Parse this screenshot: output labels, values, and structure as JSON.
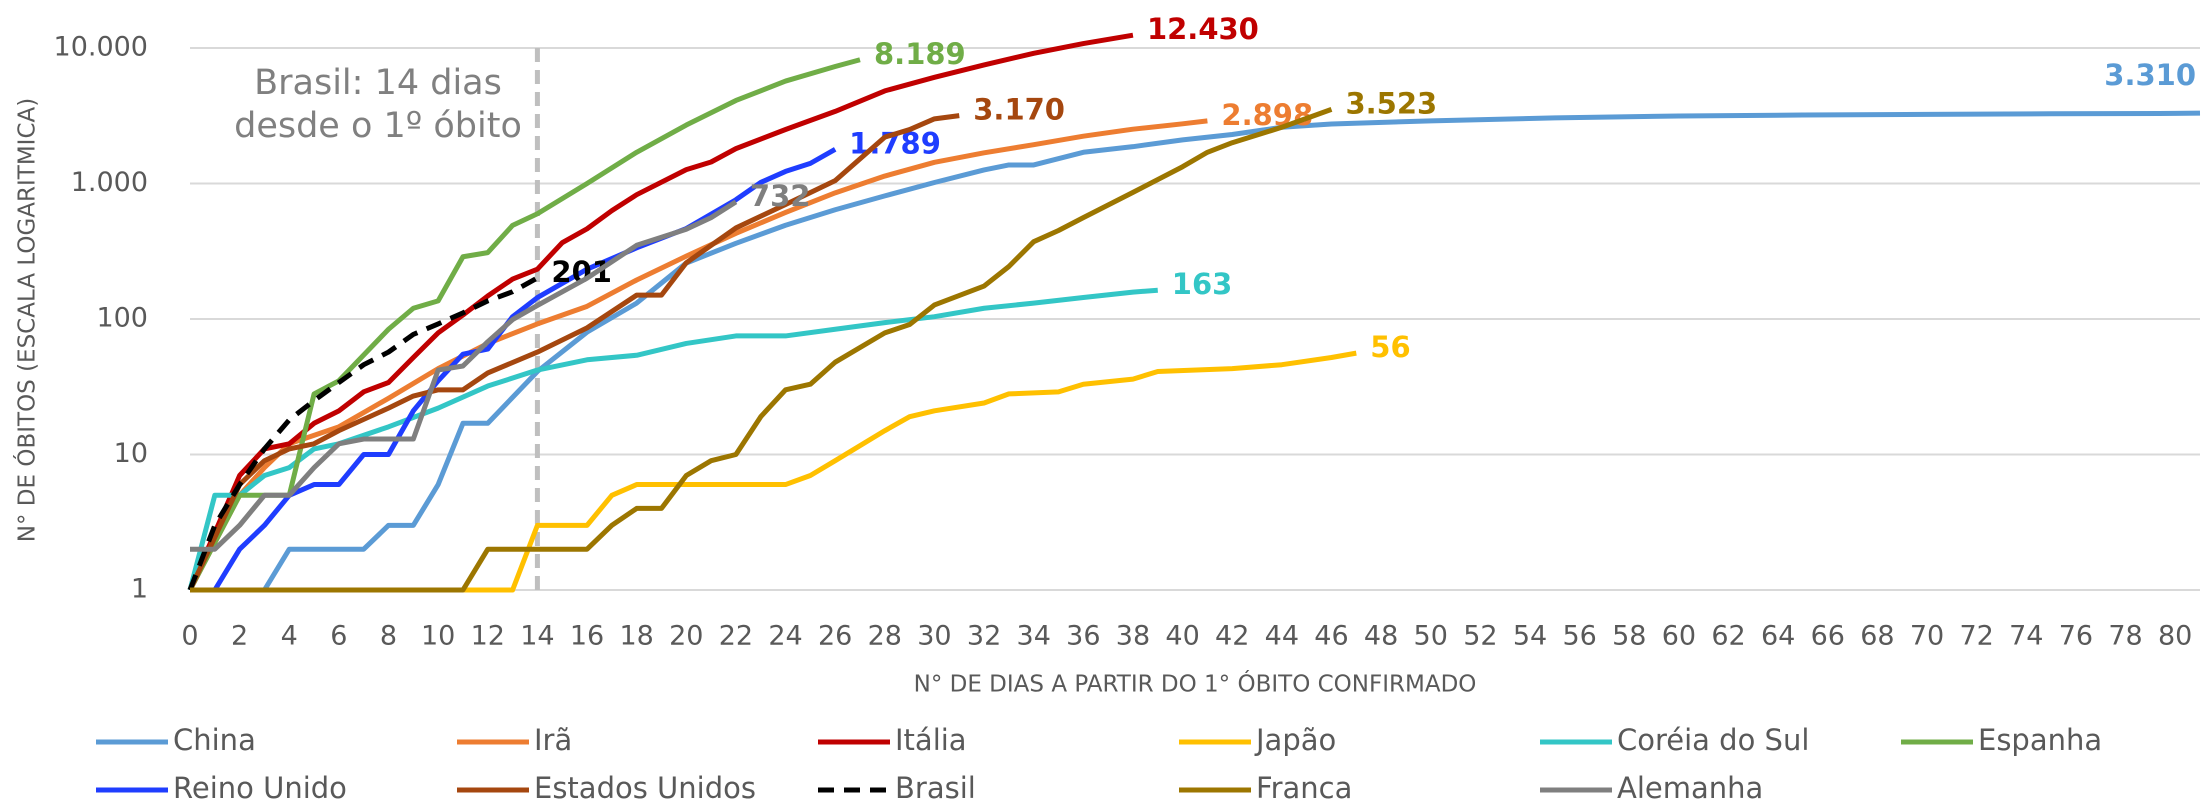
{
  "chart_data": {
    "type": "line",
    "y_label": "N° DE ÓBITOS (ESCALA LOGARITMICA)",
    "x_label": "N° DE DIAS A PARTIR DO 1° ÓBITO CONFIRMADO",
    "xlim": [
      0,
      81
    ],
    "xticks": [
      0,
      2,
      4,
      6,
      8,
      10,
      12,
      14,
      16,
      18,
      20,
      22,
      24,
      26,
      28,
      30,
      32,
      34,
      36,
      38,
      40,
      42,
      44,
      46,
      48,
      50,
      52,
      54,
      56,
      58,
      60,
      62,
      64,
      66,
      68,
      70,
      72,
      74,
      76,
      78,
      80
    ],
    "ylim": [
      1,
      10000
    ],
    "yticks": [
      1,
      10,
      100,
      {
        "value": 1000,
        "label": "1.000"
      },
      {
        "value": 10000,
        "label": "10.000"
      }
    ],
    "log_scale": true,
    "grid": true,
    "legend": "bottom",
    "annotation": {
      "lines": [
        "Brasil: 14 dias",
        "desde o 1º óbito"
      ],
      "x": 14
    },
    "series": [
      {
        "name": "China",
        "color": "#5b9bd5",
        "x": [
          3,
          4,
          7,
          8,
          9,
          10,
          11,
          12,
          14,
          16,
          18,
          20,
          22,
          24,
          26,
          28,
          30,
          32,
          33,
          34,
          36,
          38,
          40,
          42,
          44,
          46,
          50,
          55,
          60,
          65,
          70,
          75,
          80,
          81
        ],
        "values": [
          1,
          2,
          2,
          3,
          3,
          6,
          17,
          17,
          41,
          80,
          131,
          259,
          362,
          492,
          640,
          810,
          1017,
          1260,
          1370,
          1370,
          1700,
          1870,
          2100,
          2300,
          2600,
          2750,
          2900,
          3050,
          3150,
          3200,
          3240,
          3270,
          3290,
          3310
        ],
        "value_labels": [
          null,
          null,
          null,
          null,
          null,
          null,
          null,
          null,
          null,
          null,
          null,
          null,
          null,
          null,
          null,
          null,
          null,
          null,
          null,
          null,
          null,
          null,
          null,
          null,
          null,
          null,
          null,
          null,
          null,
          null,
          null,
          null,
          null,
          "3.310"
        ]
      },
      {
        "name": "Irã",
        "color": "#ed7d31",
        "x": [
          0,
          2,
          3,
          4,
          6,
          8,
          10,
          12,
          14,
          16,
          18,
          20,
          22,
          24,
          26,
          28,
          30,
          32,
          34,
          36,
          38,
          40,
          41
        ],
        "values": [
          1,
          5,
          8,
          12,
          16,
          26,
          43,
          66,
          92,
          124,
          194,
          291,
          429,
          611,
          853,
          1135,
          1433,
          1685,
          1934,
          2234,
          2517,
          2757,
          2898
        ],
        "value_labels": [
          null,
          null,
          null,
          null,
          null,
          null,
          null,
          null,
          null,
          null,
          null,
          null,
          null,
          null,
          null,
          null,
          null,
          null,
          null,
          null,
          null,
          null,
          "2.898"
        ]
      },
      {
        "name": "Itália",
        "color": "#c00000",
        "x": [
          0,
          2,
          3,
          4,
          5,
          6,
          7,
          8,
          9,
          10,
          11,
          12,
          13,
          14,
          15,
          16,
          17,
          18,
          20,
          21,
          22,
          24,
          26,
          28,
          30,
          32,
          34,
          36,
          38
        ],
        "values": [
          1,
          7,
          11,
          12,
          17,
          21,
          29,
          34,
          52,
          79,
          107,
          148,
          197,
          233,
          366,
          463,
          631,
          827,
          1266,
          1441,
          1809,
          2503,
          3405,
          4825,
          6077,
          7503,
          9134,
          10779,
          12430
        ],
        "value_labels": [
          null,
          null,
          null,
          null,
          null,
          null,
          null,
          null,
          null,
          null,
          null,
          null,
          null,
          null,
          null,
          null,
          null,
          null,
          null,
          null,
          null,
          null,
          null,
          null,
          null,
          null,
          null,
          null,
          "12.430"
        ]
      },
      {
        "name": "Japão",
        "color": "#ffc000",
        "x": [
          0,
          13,
          14,
          16,
          17,
          18,
          24,
          25,
          26,
          28,
          29,
          30,
          32,
          33,
          35,
          36,
          38,
          39,
          42,
          44,
          46,
          47
        ],
        "values": [
          1,
          1,
          3,
          3,
          5,
          6,
          6,
          7,
          9,
          15,
          19,
          21,
          24,
          28,
          29,
          33,
          36,
          41,
          43,
          46,
          52,
          56
        ]
      },
      {
        "name": "Coréia do Sul",
        "color": "#33c6c6",
        "x": [
          0,
          1,
          2,
          3,
          4,
          5,
          6,
          8,
          10,
          12,
          14,
          16,
          18,
          20,
          22,
          24,
          26,
          28,
          30,
          32,
          34,
          36,
          38,
          39
        ],
        "values": [
          1,
          5,
          5,
          7,
          8,
          11,
          12,
          16,
          22,
          32,
          42,
          50,
          54,
          66,
          75,
          75,
          84,
          94,
          104,
          120,
          131,
          144,
          158,
          163
        ]
      },
      {
        "name": "Espanha",
        "color": "#70ad47",
        "x": [
          0,
          2,
          4,
          5,
          6,
          8,
          9,
          10,
          11,
          12,
          13,
          14,
          16,
          18,
          20,
          22,
          24,
          26,
          27
        ],
        "values": [
          1,
          5,
          5,
          28,
          35,
          84,
          120,
          136,
          288,
          309,
          491,
          598,
          1000,
          1700,
          2700,
          4100,
          5700,
          7300,
          8189
        ],
        "value_labels": [
          null,
          null,
          null,
          null,
          null,
          null,
          null,
          null,
          null,
          null,
          null,
          null,
          null,
          null,
          null,
          null,
          null,
          null,
          "8.189"
        ]
      },
      {
        "name": "Reino Unido",
        "color": "#1f3dff",
        "x": [
          0,
          1,
          2,
          3,
          4,
          5,
          6,
          7,
          8,
          9,
          10,
          11,
          12,
          13,
          14,
          16,
          18,
          20,
          22,
          23,
          24,
          25,
          26
        ],
        "values": [
          1,
          1,
          2,
          3,
          5,
          6,
          6,
          10,
          10,
          21,
          35,
          55,
          60,
          104,
          144,
          233,
          335,
          465,
          759,
          1019,
          1228,
          1408,
          1789
        ],
        "value_labels": [
          null,
          null,
          null,
          null,
          null,
          null,
          null,
          null,
          null,
          null,
          null,
          null,
          null,
          null,
          null,
          null,
          null,
          null,
          null,
          null,
          null,
          null,
          "1.789"
        ]
      },
      {
        "name": "Estados Unidos",
        "color": "#a5470f",
        "x": [
          0,
          2,
          3,
          4,
          5,
          6,
          8,
          9,
          10,
          11,
          12,
          14,
          16,
          18,
          19,
          20,
          22,
          24,
          26,
          28,
          29,
          30,
          31
        ],
        "values": [
          1,
          6,
          9,
          11,
          12,
          15,
          22,
          27,
          30,
          30,
          40,
          57,
          86,
          150,
          150,
          260,
          470,
          700,
          1050,
          2200,
          2500,
          3000,
          3170
        ],
        "value_labels": [
          null,
          null,
          null,
          null,
          null,
          null,
          null,
          null,
          null,
          null,
          null,
          null,
          null,
          null,
          null,
          null,
          null,
          null,
          null,
          null,
          null,
          null,
          "3.170"
        ]
      },
      {
        "name": "Brasil",
        "color": "#000000",
        "dashed": true,
        "x": [
          0,
          1,
          2,
          3,
          4,
          5,
          6,
          7,
          8,
          9,
          10,
          11,
          12,
          13,
          14
        ],
        "values": [
          1,
          3,
          6,
          11,
          18,
          25,
          34,
          46,
          57,
          77,
          92,
          111,
          136,
          159,
          201
        ]
      },
      {
        "name": "Franca",
        "color": "#9c7600",
        "x": [
          0,
          11,
          12,
          16,
          17,
          18,
          19,
          20,
          21,
          22,
          23,
          24,
          25,
          26,
          28,
          29,
          30,
          32,
          33,
          34,
          35,
          36,
          38,
          40,
          41,
          42,
          44,
          46
        ],
        "values": [
          1,
          1,
          2,
          2,
          3,
          4,
          4,
          7,
          9,
          10,
          19,
          30,
          33,
          48,
          79,
          91,
          127,
          175,
          244,
          372,
          450,
          560,
          860,
          1330,
          1700,
          2000,
          2600,
          3523
        ],
        "value_labels": [
          null,
          null,
          null,
          null,
          null,
          null,
          null,
          null,
          null,
          null,
          null,
          null,
          null,
          null,
          null,
          null,
          null,
          null,
          null,
          null,
          null,
          null,
          null,
          null,
          null,
          null,
          null,
          "3.523"
        ]
      },
      {
        "name": "Alemanha",
        "color": "#7f7f7f",
        "x": [
          0,
          1,
          2,
          3,
          4,
          5,
          6,
          7,
          8,
          9,
          10,
          11,
          12,
          13,
          14,
          16,
          18,
          20,
          21,
          22
        ],
        "values": [
          2,
          2,
          3,
          5,
          5,
          8,
          12,
          13,
          13,
          13,
          42,
          45,
          68,
          99,
          126,
          200,
          350,
          460,
          560,
          732
        ]
      }
    ]
  }
}
